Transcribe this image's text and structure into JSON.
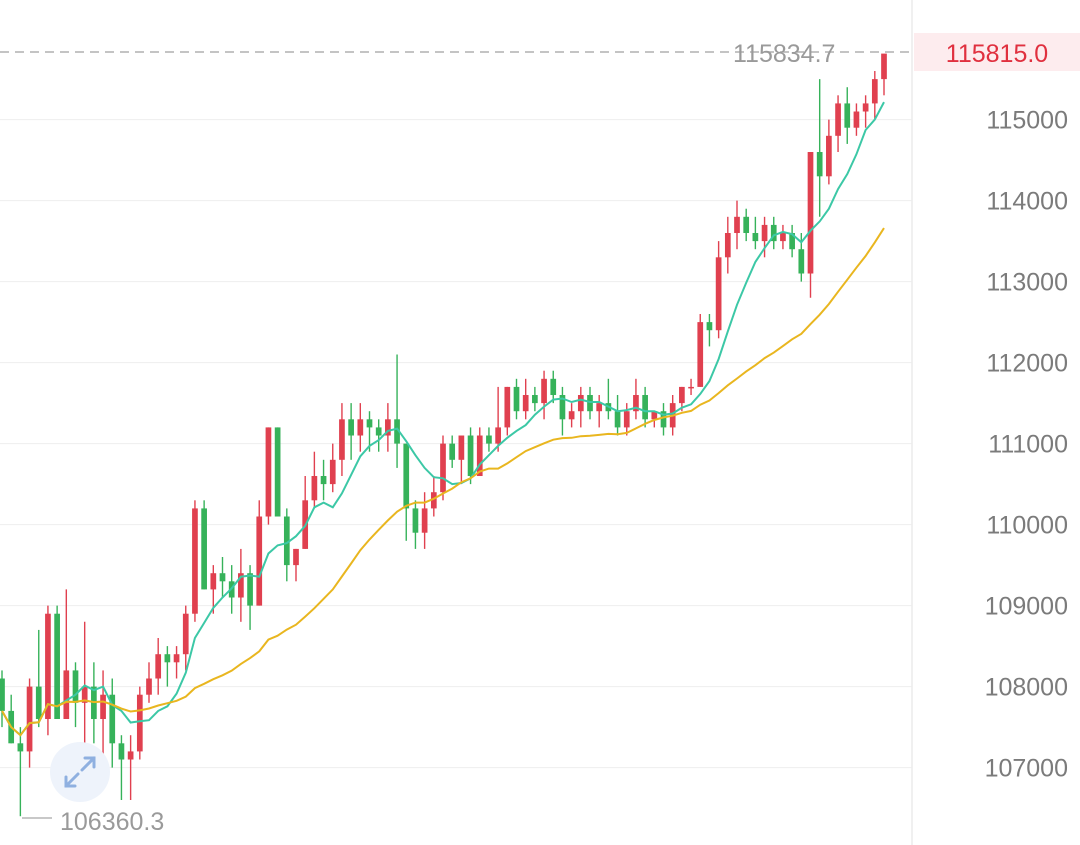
{
  "chart_data": {
    "type": "candlestick",
    "y_axis": {
      "ticks": [
        "107000",
        "108000",
        "109000",
        "110000",
        "111000",
        "112000",
        "113000",
        "114000",
        "115000"
      ],
      "ylim": [
        106300,
        115900
      ],
      "position": "right",
      "grid": true
    },
    "current_price": {
      "value": 115815.0,
      "label": "115815.0",
      "color": "#e0303f"
    },
    "annotations": {
      "high": {
        "value": 115834.7,
        "label": "115834.7"
      },
      "low": {
        "value": 106360.3,
        "label": "106360.3"
      }
    },
    "colors": {
      "up": "#e0404f",
      "down": "#36b25a",
      "ma_short": "#3cc8a6",
      "ma_long": "#e9b61f",
      "grid": "#eeeeee"
    },
    "candles": [
      [
        108100,
        108200,
        107500,
        107700
      ],
      [
        107700,
        107900,
        107300,
        107300
      ],
      [
        107300,
        107500,
        106400,
        107200
      ],
      [
        107200,
        108100,
        107000,
        108000
      ],
      [
        108000,
        108700,
        107500,
        107600
      ],
      [
        107600,
        109000,
        107400,
        108900
      ],
      [
        108900,
        109000,
        107600,
        107600
      ],
      [
        107600,
        109200,
        107600,
        108200
      ],
      [
        108200,
        108300,
        107500,
        107800
      ],
      [
        107800,
        108800,
        107200,
        108000
      ],
      [
        108000,
        108300,
        107300,
        107600
      ],
      [
        107600,
        108200,
        107100,
        107900
      ],
      [
        107900,
        108100,
        107000,
        107300
      ],
      [
        107300,
        107400,
        106600,
        107100
      ],
      [
        107100,
        107400,
        106600,
        107200
      ],
      [
        107200,
        108000,
        107100,
        107900
      ],
      [
        107900,
        108300,
        107800,
        108100
      ],
      [
        108100,
        108600,
        107900,
        108400
      ],
      [
        108400,
        108500,
        108000,
        108300
      ],
      [
        108300,
        108500,
        108100,
        108400
      ],
      [
        108400,
        109000,
        108200,
        108900
      ],
      [
        108900,
        110300,
        108800,
        110200
      ],
      [
        110200,
        110300,
        109200,
        109200
      ],
      [
        109200,
        109500,
        108900,
        109400
      ],
      [
        109400,
        109600,
        109100,
        109300
      ],
      [
        109300,
        109500,
        108900,
        109100
      ],
      [
        109100,
        109700,
        108800,
        109400
      ],
      [
        109400,
        109500,
        108700,
        109000
      ],
      [
        109000,
        110300,
        109000,
        110100
      ],
      [
        110100,
        111200,
        110000,
        111200
      ],
      [
        111200,
        111200,
        110100,
        110100
      ],
      [
        110100,
        110200,
        109300,
        109500
      ],
      [
        109500,
        109700,
        109300,
        109700
      ],
      [
        109700,
        110600,
        109700,
        110300
      ],
      [
        110300,
        110900,
        110200,
        110600
      ],
      [
        110600,
        110800,
        110300,
        110500
      ],
      [
        110500,
        111000,
        110400,
        110800
      ],
      [
        110800,
        111500,
        110600,
        111300
      ],
      [
        111300,
        111500,
        110800,
        111100
      ],
      [
        111100,
        111500,
        110900,
        111300
      ],
      [
        111300,
        111400,
        110900,
        111200
      ],
      [
        111200,
        111300,
        110900,
        111100
      ],
      [
        111100,
        111500,
        110900,
        111300
      ],
      [
        111300,
        112100,
        110700,
        111000
      ],
      [
        111000,
        111000,
        109800,
        110200
      ],
      [
        110200,
        110300,
        109700,
        109900
      ],
      [
        109900,
        110400,
        109700,
        110200
      ],
      [
        110200,
        110600,
        110100,
        110400
      ],
      [
        110400,
        111100,
        110300,
        111000
      ],
      [
        111000,
        111100,
        110700,
        110800
      ],
      [
        110800,
        111100,
        110500,
        111100
      ],
      [
        111100,
        111200,
        110500,
        110600
      ],
      [
        110600,
        111200,
        110600,
        111100
      ],
      [
        111100,
        111200,
        110900,
        111000
      ],
      [
        111000,
        111700,
        110900,
        111200
      ],
      [
        111200,
        111700,
        111100,
        111700
      ],
      [
        111700,
        111800,
        111300,
        111400
      ],
      [
        111400,
        111800,
        111300,
        111600
      ],
      [
        111600,
        111700,
        111400,
        111500
      ],
      [
        111500,
        111900,
        111300,
        111800
      ],
      [
        111800,
        111900,
        111500,
        111600
      ],
      [
        111600,
        111700,
        111100,
        111300
      ],
      [
        111300,
        111500,
        111200,
        111400
      ],
      [
        111400,
        111700,
        111200,
        111600
      ],
      [
        111600,
        111700,
        111300,
        111400
      ],
      [
        111400,
        111600,
        111200,
        111500
      ],
      [
        111500,
        111800,
        111300,
        111400
      ],
      [
        111400,
        111600,
        111100,
        111200
      ],
      [
        111200,
        111500,
        111100,
        111400
      ],
      [
        111400,
        111800,
        111300,
        111600
      ],
      [
        111600,
        111700,
        111200,
        111300
      ],
      [
        111300,
        111400,
        111200,
        111400
      ],
      [
        111400,
        111500,
        111100,
        111200
      ],
      [
        111200,
        111600,
        111100,
        111500
      ],
      [
        111500,
        111700,
        111400,
        111700
      ],
      [
        111700,
        111800,
        111600,
        111700
      ],
      [
        111700,
        112600,
        111700,
        112500
      ],
      [
        112500,
        112600,
        112200,
        112400
      ],
      [
        112400,
        113500,
        112300,
        113300
      ],
      [
        113300,
        113800,
        113100,
        113600
      ],
      [
        113600,
        114000,
        113400,
        113800
      ],
      [
        113800,
        113900,
        113500,
        113600
      ],
      [
        113600,
        113800,
        113400,
        113500
      ],
      [
        113500,
        113800,
        113300,
        113700
      ],
      [
        113700,
        113800,
        113400,
        113500
      ],
      [
        113500,
        113700,
        113400,
        113600
      ],
      [
        113600,
        113700,
        113300,
        113400
      ],
      [
        113400,
        113600,
        113000,
        113100
      ],
      [
        113100,
        114600,
        112800,
        114600
      ],
      [
        114600,
        115500,
        113800,
        114300
      ],
      [
        114300,
        115000,
        114200,
        114800
      ],
      [
        114800,
        115300,
        114600,
        115200
      ],
      [
        115200,
        115400,
        114700,
        114900
      ],
      [
        114900,
        115200,
        114800,
        115100
      ],
      [
        115100,
        115300,
        114900,
        115200
      ],
      [
        115200,
        115600,
        115000,
        115500
      ],
      [
        115500,
        115800,
        115300,
        115815
      ]
    ]
  }
}
